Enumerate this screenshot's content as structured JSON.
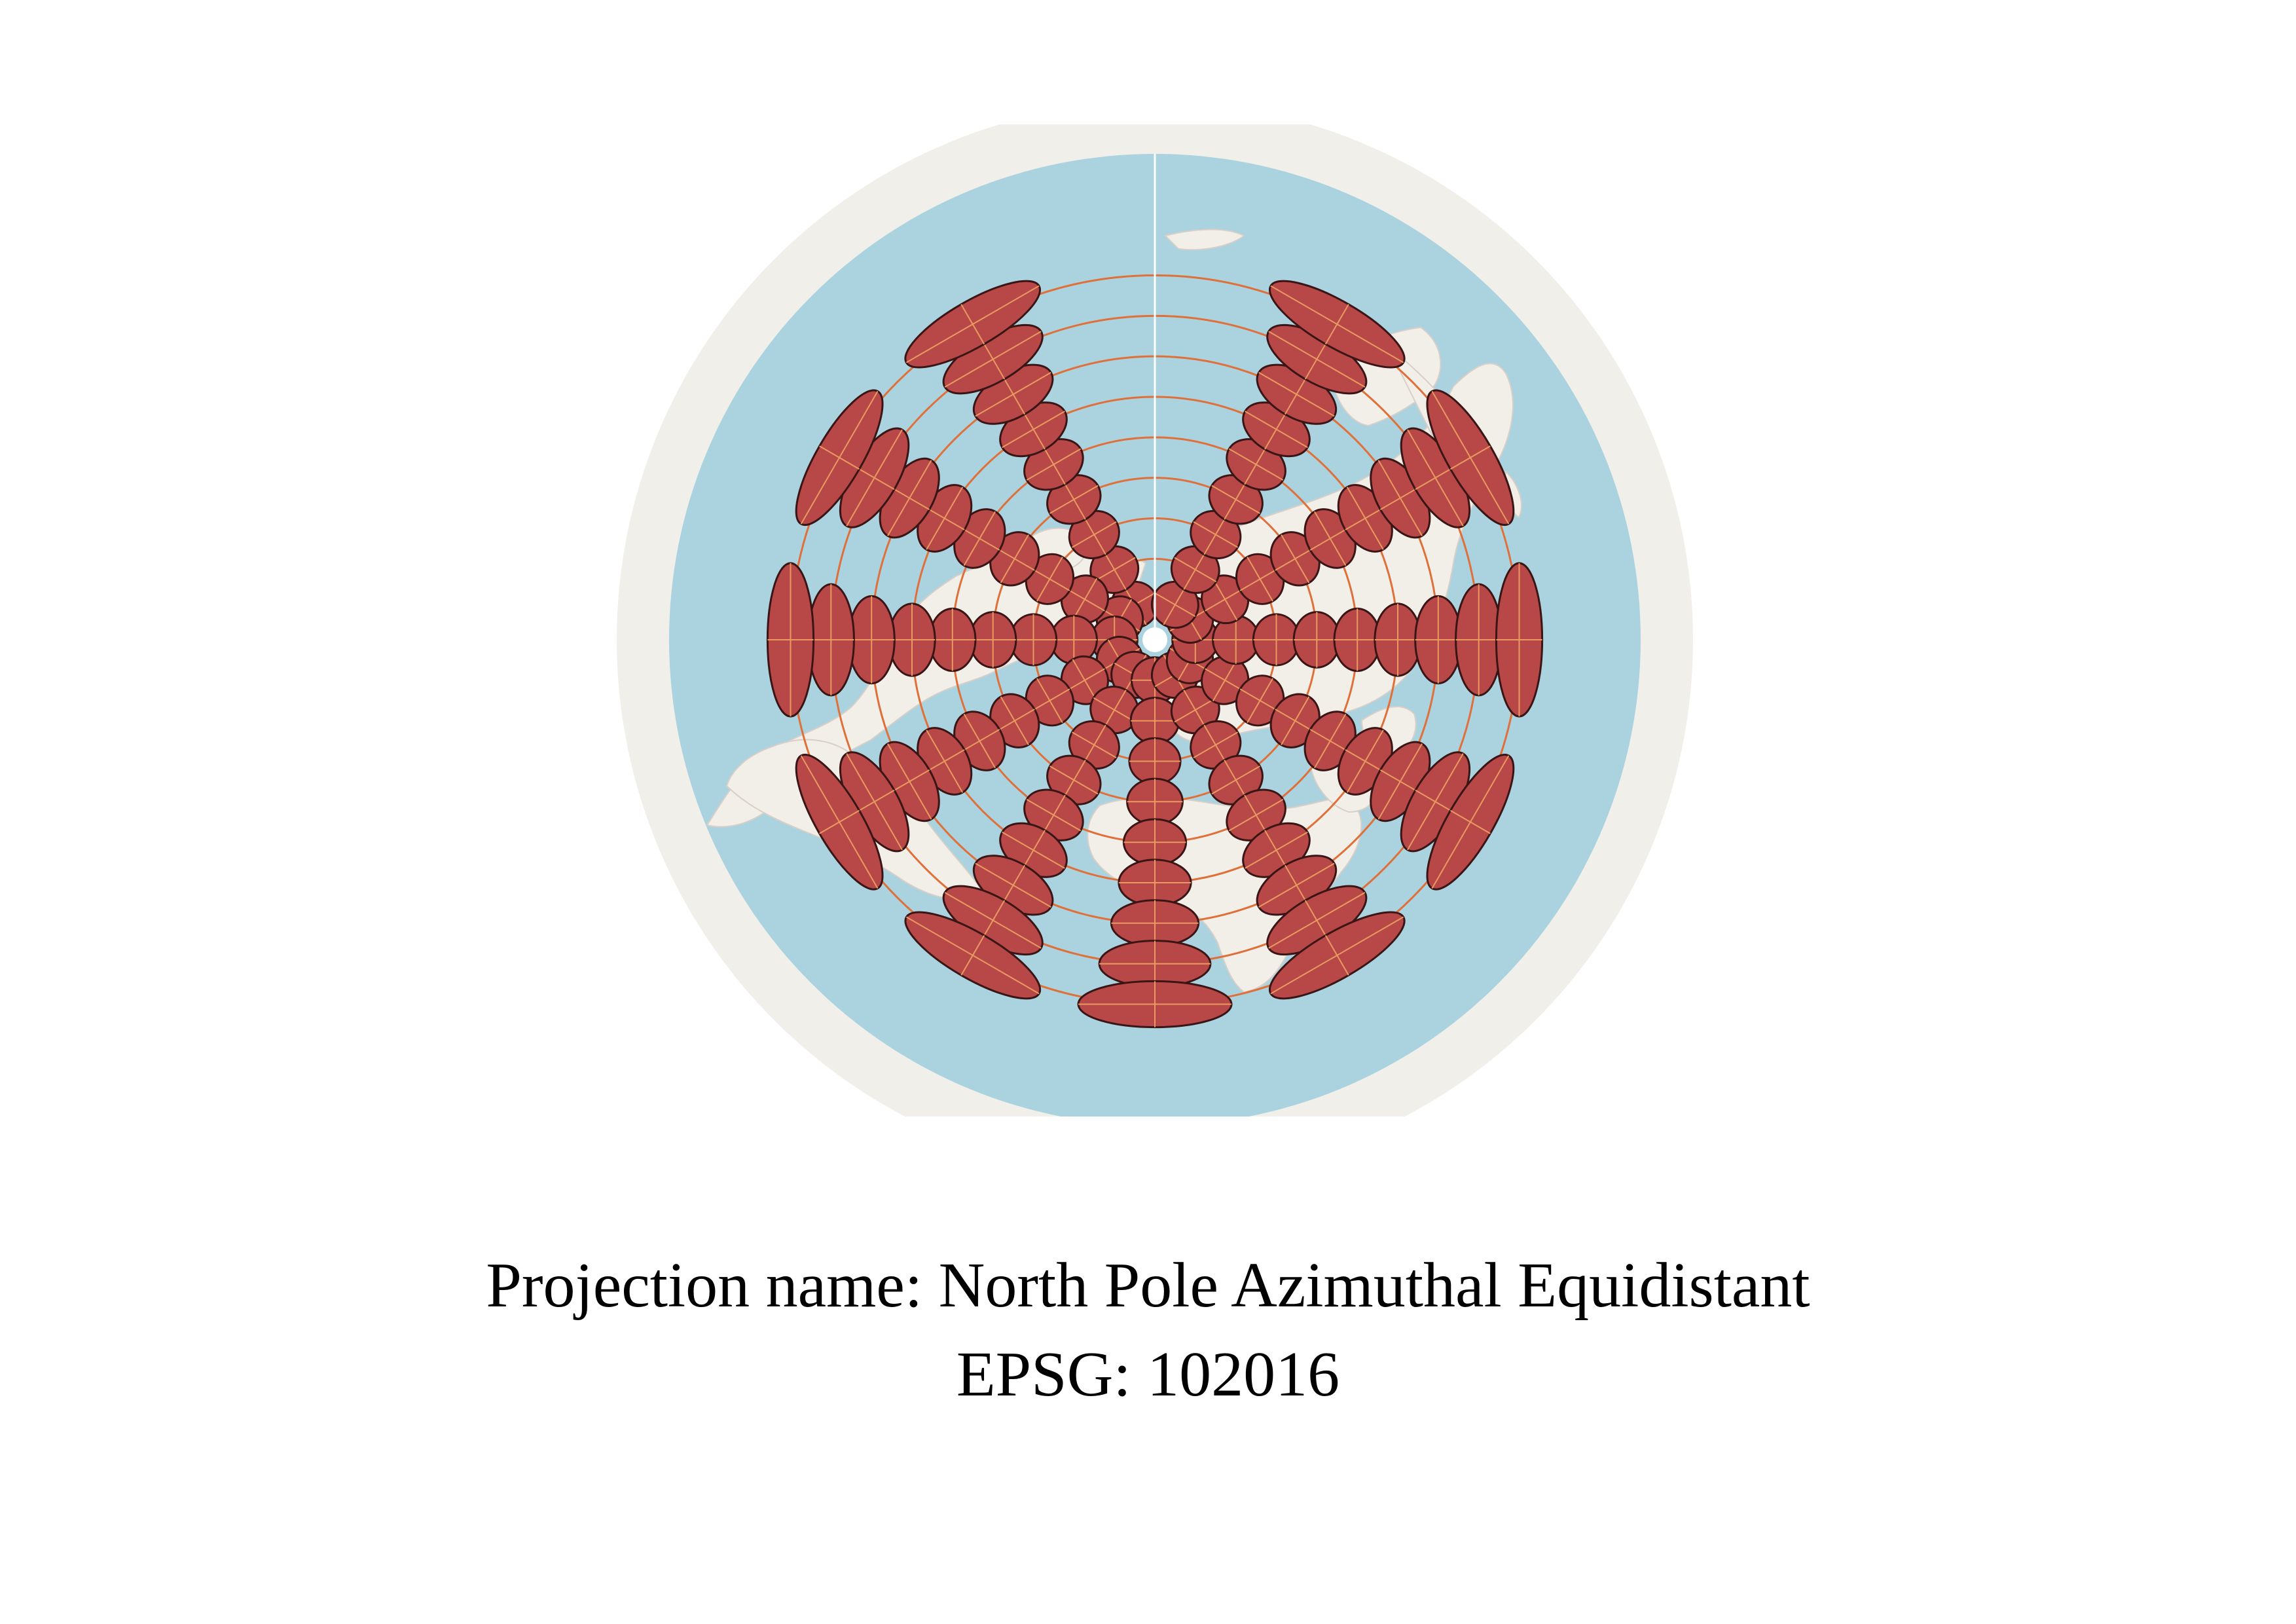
{
  "caption": {
    "line1": "Projection name: North Pole Azimuthal Equidistant",
    "line2": "EPSG: 102016"
  },
  "map": {
    "projection": "North Pole Azimuthal Equidistant",
    "epsg": "102016",
    "overlay": "Tissot's indicatrix",
    "parallels_deg": [
      75,
      60,
      45,
      30,
      15,
      0,
      -15,
      -30,
      -45
    ],
    "meridians_deg": [
      -180,
      -150,
      -120,
      -90,
      -60,
      -30,
      0,
      30,
      60,
      90,
      120,
      150
    ],
    "colors": {
      "ocean": "#aad3df",
      "land": "#f2efe9",
      "outer_ring": "#f1efea",
      "ellipse_fill": "#b84848",
      "ellipse_stroke": "#3a1515",
      "graticule": "#e0703a",
      "pole_marker": "#ffffff"
    }
  }
}
